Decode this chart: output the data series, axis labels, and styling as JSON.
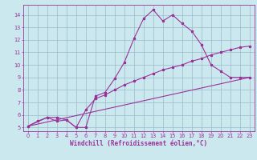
{
  "title": "",
  "xlabel": "Windchill (Refroidissement éolien,°C)",
  "bg_color": "#cce8ef",
  "grid_color": "#99bbcc",
  "line_color": "#993399",
  "xlim": [
    -0.5,
    23.5
  ],
  "ylim": [
    4.7,
    14.8
  ],
  "xticks": [
    0,
    1,
    2,
    3,
    4,
    5,
    6,
    7,
    8,
    9,
    10,
    11,
    12,
    13,
    14,
    15,
    16,
    17,
    18,
    19,
    20,
    21,
    22,
    23
  ],
  "yticks": [
    5,
    6,
    7,
    8,
    9,
    10,
    11,
    12,
    13,
    14
  ],
  "series1_x": [
    0,
    1,
    2,
    3,
    4,
    5,
    6,
    7,
    8,
    9,
    10,
    11,
    12,
    13,
    14,
    15,
    16,
    17,
    18,
    19,
    20,
    21,
    22,
    23
  ],
  "series1_y": [
    5.1,
    5.5,
    5.8,
    5.8,
    5.6,
    5.0,
    5.0,
    7.5,
    7.8,
    8.9,
    10.2,
    12.1,
    13.7,
    14.4,
    13.5,
    14.0,
    13.3,
    12.7,
    11.6,
    10.0,
    9.5,
    9.0,
    9.0,
    9.0
  ],
  "series2_x": [
    0,
    2,
    3,
    4,
    5,
    6,
    7,
    8,
    9,
    10,
    11,
    12,
    13,
    14,
    15,
    16,
    17,
    18,
    19,
    20,
    21,
    22,
    23
  ],
  "series2_y": [
    5.1,
    5.8,
    5.5,
    5.6,
    5.0,
    6.4,
    7.3,
    7.6,
    8.0,
    8.4,
    8.7,
    9.0,
    9.3,
    9.6,
    9.8,
    10.0,
    10.3,
    10.5,
    10.8,
    11.0,
    11.2,
    11.4,
    11.5
  ],
  "series3_x": [
    0,
    23
  ],
  "series3_y": [
    5.1,
    9.0
  ],
  "xlabel_fontsize": 5.5,
  "tick_fontsize": 4.8
}
